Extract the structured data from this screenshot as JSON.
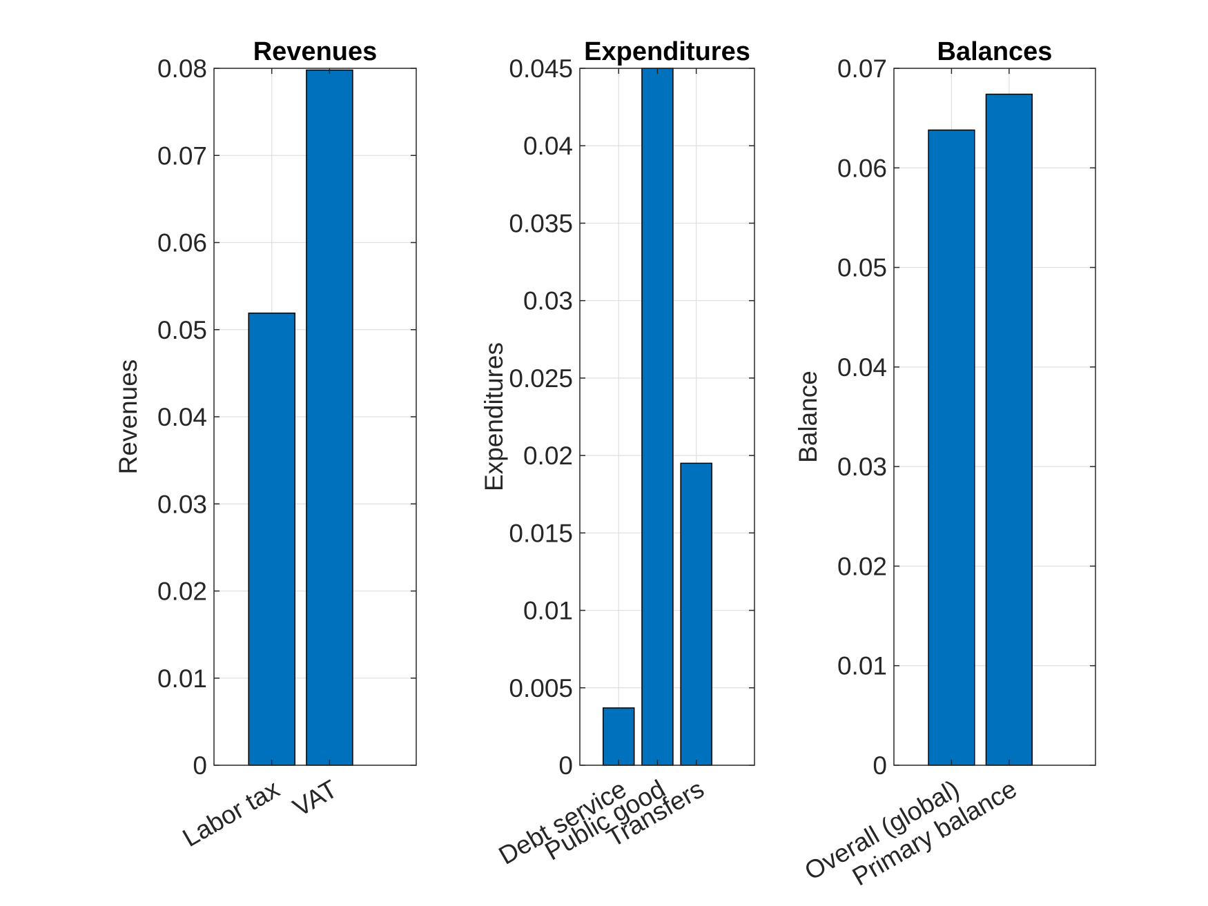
{
  "colors": {
    "bar": "#0072BD",
    "bar_edge": "#000000",
    "axis": "#262626",
    "grid": "#dfdfdf",
    "background": "#ffffff"
  },
  "chart_data": [
    {
      "type": "bar",
      "title": "Revenues",
      "xlabel": "",
      "ylabel": "Revenues",
      "categories": [
        "Labor tax",
        "VAT"
      ],
      "values": [
        0.0519,
        0.0798
      ],
      "ylim": [
        0,
        0.08
      ],
      "yticks": [
        "0",
        "0.01",
        "0.02",
        "0.03",
        "0.04",
        "0.05",
        "0.06",
        "0.07",
        "0.08"
      ],
      "xlim": [
        0,
        3.5
      ],
      "grid": true
    },
    {
      "type": "bar",
      "title": "Expenditures",
      "xlabel": "",
      "ylabel": "Expenditures",
      "categories": [
        "Debt service",
        "Public good",
        "Transfers"
      ],
      "values": [
        0.0037,
        0.045,
        0.0195
      ],
      "ylim": [
        0,
        0.045
      ],
      "yticks": [
        "0",
        "0.005",
        "0.01",
        "0.015",
        "0.02",
        "0.025",
        "0.03",
        "0.035",
        "0.04",
        "0.045"
      ],
      "xlim": [
        0,
        4.5
      ],
      "grid": true
    },
    {
      "type": "bar",
      "title": "Balances",
      "xlabel": "",
      "ylabel": "Balance",
      "categories": [
        "Overall (global)",
        "Primary balance"
      ],
      "values": [
        0.0638,
        0.0674
      ],
      "ylim": [
        0,
        0.07
      ],
      "yticks": [
        "0",
        "0.01",
        "0.02",
        "0.03",
        "0.04",
        "0.05",
        "0.06",
        "0.07"
      ],
      "xlim": [
        0,
        3.5
      ],
      "grid": true
    }
  ]
}
